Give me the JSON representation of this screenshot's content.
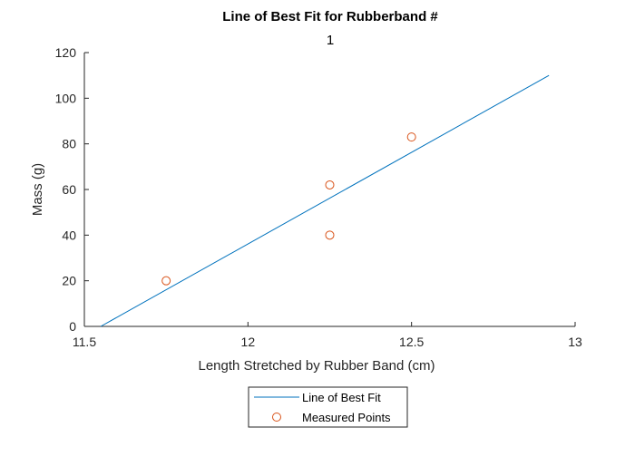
{
  "chart_data": {
    "type": "scatter",
    "title": "Line of Best Fit for Rubberband #",
    "subtitle": "1",
    "xlabel": "Length Stretched by Rubber Band (cm)",
    "ylabel": "Mass (g)",
    "xlim": [
      11.5,
      13
    ],
    "ylim": [
      0,
      120
    ],
    "xticks": [
      11.5,
      12,
      12.5,
      13
    ],
    "yticks": [
      0,
      20,
      40,
      60,
      80,
      100,
      120
    ],
    "xtick_labels": [
      "11.5",
      "12",
      "12.5",
      "13"
    ],
    "ytick_labels": [
      "0",
      "20",
      "40",
      "60",
      "80",
      "100",
      "120"
    ],
    "grid": false,
    "legend_placement": "bottom-center-outside",
    "series": [
      {
        "name": "Line of Best Fit",
        "kind": "line",
        "color": "#0072BD",
        "x": [
          11.55,
          12.92
        ],
        "y": [
          0,
          110
        ]
      },
      {
        "name": "Measured Points",
        "kind": "marker",
        "marker": "circle",
        "color": "#D95319",
        "x": [
          11.75,
          12.25,
          12.25,
          12.5
        ],
        "y": [
          20,
          40,
          62,
          83
        ]
      }
    ]
  }
}
